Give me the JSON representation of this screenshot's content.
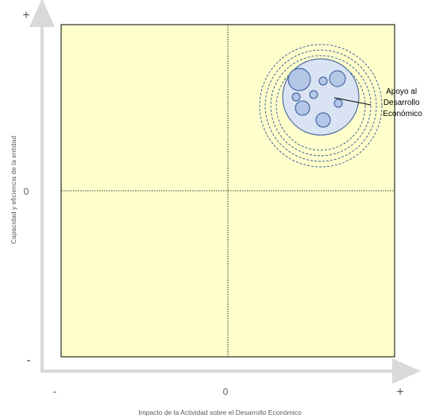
{
  "x_axis": {
    "title": "Impacto de la Actividad sobre el Desarrollo Económico",
    "min_label": "-",
    "mid_label": "0",
    "max_label": "+"
  },
  "y_axis": {
    "title": "Capacidad y eficiencia de la entidad",
    "min_label": "-",
    "mid_label": "0",
    "max_label": "+"
  },
  "cluster": {
    "label_lines": [
      "Apoyo al",
      "Desarrollo",
      "Económico"
    ],
    "ring_count": 4,
    "bubble_count": 9
  },
  "colors": {
    "quadrant_fill": "#ffffcc",
    "cluster_fill": "#dae3f3",
    "bubble_fill": "#b4c7e7",
    "bubble_stroke": "#2f5597",
    "axis": "#d9d9d9"
  }
}
